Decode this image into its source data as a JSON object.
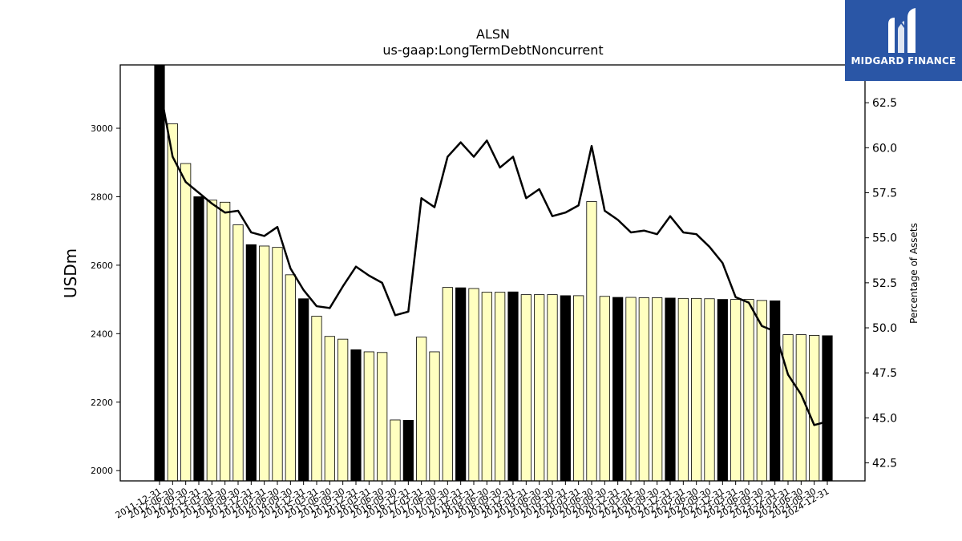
{
  "chart_data": {
    "type": "bar",
    "title": "ALSN",
    "subtitle": "us-gaap:LongTermDebtNoncurrent",
    "ylabel": "USDm",
    "ylabel_right": "Percentage of Assets",
    "ylim": [
      1970,
      3185
    ],
    "ylim_right": [
      41.5,
      64.6
    ],
    "yticks": [
      2000,
      2200,
      2400,
      2600,
      2800,
      3000
    ],
    "yticks_right": [
      42.5,
      45.0,
      47.5,
      50.0,
      52.5,
      55.0,
      57.5,
      60.0,
      62.5
    ],
    "yticks_right_labels": [
      "42.5",
      "45.0",
      "47.5",
      "50.0",
      "52.5",
      "55.0",
      "57.5",
      "60.0",
      "62.5"
    ],
    "categories": [
      "2011-12-31",
      "2012-06-30",
      "2012-09-30",
      "2012-12-31",
      "2013-03-31",
      "2013-06-30",
      "2013-09-30",
      "2013-12-31",
      "2014-03-31",
      "2014-06-30",
      "2014-09-30",
      "2014-12-31",
      "2015-03-31",
      "2015-06-30",
      "2015-09-30",
      "2015-12-31",
      "2016-03-31",
      "2016-06-30",
      "2016-09-30",
      "2016-12-31",
      "2017-03-31",
      "2017-06-30",
      "2017-09-30",
      "2017-12-31",
      "2018-03-31",
      "2018-06-30",
      "2018-09-30",
      "2018-12-31",
      "2019-03-31",
      "2019-06-30",
      "2019-09-30",
      "2019-12-31",
      "2020-03-31",
      "2020-06-30",
      "2020-09-30",
      "2020-12-31",
      "2021-03-31",
      "2021-06-30",
      "2021-09-30",
      "2021-12-31",
      "2022-03-31",
      "2022-06-30",
      "2022-09-30",
      "2022-12-31",
      "2023-03-31",
      "2023-06-30",
      "2023-09-30",
      "2023-12-31",
      "2024-03-31",
      "2024-06-30",
      "2024-09-30",
      "2024-12-31"
    ],
    "values": [
      3185,
      3013,
      2897,
      2800,
      2790,
      2784,
      2718,
      2660,
      2656,
      2652,
      2572,
      2502,
      2451,
      2392,
      2384,
      2353,
      2347,
      2345,
      2148,
      2147,
      2390,
      2347,
      2535,
      2534,
      2532,
      2521,
      2521,
      2522,
      2514,
      2514,
      2514,
      2511,
      2511,
      2786,
      2509,
      2506,
      2506,
      2505,
      2505,
      2504,
      2503,
      2503,
      2502,
      2500,
      2500,
      2500,
      2497,
      2496,
      2397,
      2397,
      2395,
      2394
    ],
    "bar_colors": [
      "#000000",
      "#ffffc0",
      "#ffffc0",
      "#000000",
      "#ffffc0",
      "#ffffc0",
      "#ffffc0",
      "#000000",
      "#ffffc0",
      "#ffffc0",
      "#ffffc0",
      "#000000",
      "#ffffc0",
      "#ffffc0",
      "#ffffc0",
      "#000000",
      "#ffffc0",
      "#ffffc0",
      "#ffffc0",
      "#000000",
      "#ffffc0",
      "#ffffc0",
      "#ffffc0",
      "#000000",
      "#ffffc0",
      "#ffffc0",
      "#ffffc0",
      "#000000",
      "#ffffc0",
      "#ffffc0",
      "#ffffc0",
      "#000000",
      "#ffffc0",
      "#ffffc0",
      "#ffffc0",
      "#000000",
      "#ffffc0",
      "#ffffc0",
      "#ffffc0",
      "#000000",
      "#ffffc0",
      "#ffffc0",
      "#ffffc0",
      "#000000",
      "#ffffc0",
      "#ffffc0",
      "#ffffc0",
      "#000000",
      "#ffffc0",
      "#ffffc0",
      "#ffffc0",
      "#000000"
    ],
    "line_values": [
      63.4,
      59.5,
      58.1,
      57.5,
      56.9,
      56.4,
      56.5,
      55.3,
      55.1,
      55.6,
      53.3,
      52.1,
      51.2,
      51.1,
      52.3,
      53.4,
      52.9,
      52.5,
      50.7,
      50.9,
      57.2,
      56.7,
      59.5,
      60.3,
      59.5,
      60.4,
      58.9,
      59.5,
      57.2,
      57.7,
      56.2,
      56.4,
      56.8,
      60.1,
      56.5,
      56.0,
      55.3,
      55.4,
      55.2,
      56.2,
      55.3,
      55.2,
      54.5,
      53.6,
      51.7,
      51.4,
      50.1,
      49.8,
      47.4,
      46.3,
      44.6,
      44.8
    ],
    "grid": false
  },
  "logo": {
    "brand": "MIDGARD FINANCE",
    "color": "#2a56a6",
    "mark": "m-logo-icon"
  }
}
